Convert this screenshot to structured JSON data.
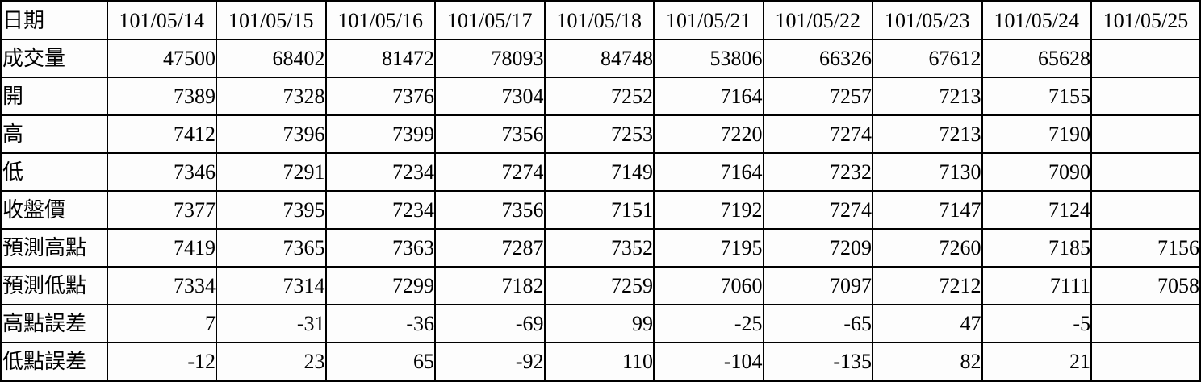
{
  "table": {
    "header": {
      "label": "日期",
      "dates": [
        "101/05/14",
        "101/05/15",
        "101/05/16",
        "101/05/17",
        "101/05/18",
        "101/05/21",
        "101/05/22",
        "101/05/23",
        "101/05/24",
        "101/05/25"
      ]
    },
    "rows": [
      {
        "label": "成交量",
        "values": [
          "47500",
          "68402",
          "81472",
          "78093",
          "84748",
          "53806",
          "66326",
          "67612",
          "65628",
          ""
        ]
      },
      {
        "label": "開",
        "values": [
          "7389",
          "7328",
          "7376",
          "7304",
          "7252",
          "7164",
          "7257",
          "7213",
          "7155",
          ""
        ]
      },
      {
        "label": "高",
        "values": [
          "7412",
          "7396",
          "7399",
          "7356",
          "7253",
          "7220",
          "7274",
          "7213",
          "7190",
          ""
        ]
      },
      {
        "label": "低",
        "values": [
          "7346",
          "7291",
          "7234",
          "7274",
          "7149",
          "7164",
          "7232",
          "7130",
          "7090",
          ""
        ]
      },
      {
        "label": "收盤價",
        "values": [
          "7377",
          "7395",
          "7234",
          "7356",
          "7151",
          "7192",
          "7274",
          "7147",
          "7124",
          ""
        ]
      },
      {
        "label": "預測高點",
        "values": [
          "7419",
          "7365",
          "7363",
          "7287",
          "7352",
          "7195",
          "7209",
          "7260",
          "7185",
          "7156"
        ]
      },
      {
        "label": "預測低點",
        "values": [
          "7334",
          "7314",
          "7299",
          "7182",
          "7259",
          "7060",
          "7097",
          "7212",
          "7111",
          "7058"
        ]
      },
      {
        "label": "高點誤差",
        "values": [
          "7",
          "-31",
          "-36",
          "-69",
          "99",
          "-25",
          "-65",
          "47",
          "-5",
          ""
        ]
      },
      {
        "label": "低點誤差",
        "values": [
          "-12",
          "23",
          "65",
          "-92",
          "110",
          "-104",
          "-135",
          "82",
          "21",
          ""
        ]
      }
    ],
    "border_color": "#000000",
    "cell_background": "#fdfdfd",
    "text_color": "#000000"
  },
  "chart_data": {
    "type": "table",
    "title": "",
    "columns": [
      "日期",
      "101/05/14",
      "101/05/15",
      "101/05/16",
      "101/05/17",
      "101/05/18",
      "101/05/21",
      "101/05/22",
      "101/05/23",
      "101/05/24",
      "101/05/25"
    ],
    "rows": [
      [
        "成交量",
        47500,
        68402,
        81472,
        78093,
        84748,
        53806,
        66326,
        67612,
        65628,
        null
      ],
      [
        "開",
        7389,
        7328,
        7376,
        7304,
        7252,
        7164,
        7257,
        7213,
        7155,
        null
      ],
      [
        "高",
        7412,
        7396,
        7399,
        7356,
        7253,
        7220,
        7274,
        7213,
        7190,
        null
      ],
      [
        "低",
        7346,
        7291,
        7234,
        7274,
        7149,
        7164,
        7232,
        7130,
        7090,
        null
      ],
      [
        "收盤價",
        7377,
        7395,
        7234,
        7356,
        7151,
        7192,
        7274,
        7147,
        7124,
        null
      ],
      [
        "預測高點",
        7419,
        7365,
        7363,
        7287,
        7352,
        7195,
        7209,
        7260,
        7185,
        7156
      ],
      [
        "預測低點",
        7334,
        7314,
        7299,
        7182,
        7259,
        7060,
        7097,
        7212,
        7111,
        7058
      ],
      [
        "高點誤差",
        7,
        -31,
        -36,
        -69,
        99,
        -25,
        -65,
        47,
        -5,
        null
      ],
      [
        "低點誤差",
        -12,
        23,
        65,
        -92,
        110,
        -104,
        -135,
        82,
        21,
        null
      ]
    ],
    "layout_hints": {
      "grid": "all-borders",
      "first_column_role": "row-labels",
      "first_row_role": "column-headers",
      "number_alignment": "right",
      "header_alignment": "center"
    }
  }
}
